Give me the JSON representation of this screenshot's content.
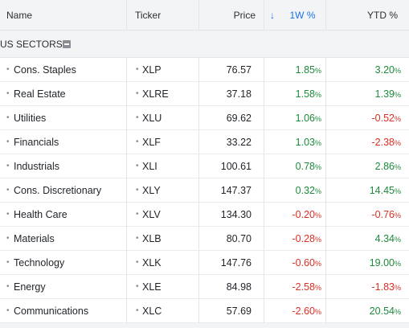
{
  "header": {
    "name": "Name",
    "ticker": "Ticker",
    "price": "Price",
    "sort_icon": "arrow-down-icon",
    "week": "1W %",
    "ytd": "YTD %"
  },
  "group": {
    "title": "US SECTORS",
    "toggle_icon": "collapse-minus-icon"
  },
  "colors": {
    "positive": "#1e8a3c",
    "negative": "#d93025",
    "accent": "#1a73e8"
  },
  "rows": [
    {
      "name": "Cons. Staples",
      "ticker": "XLP",
      "price": "76.57",
      "w1": "1.85",
      "ytd": "3.20"
    },
    {
      "name": "Real Estate",
      "ticker": "XLRE",
      "price": "37.18",
      "w1": "1.58",
      "ytd": "1.39"
    },
    {
      "name": "Utilities",
      "ticker": "XLU",
      "price": "69.62",
      "w1": "1.06",
      "ytd": "-0.52"
    },
    {
      "name": "Financials",
      "ticker": "XLF",
      "price": "33.22",
      "w1": "1.03",
      "ytd": "-2.38"
    },
    {
      "name": "Industrials",
      "ticker": "XLI",
      "price": "100.61",
      "w1": "0.78",
      "ytd": "2.86"
    },
    {
      "name": "Cons. Discretionary",
      "ticker": "XLY",
      "price": "147.37",
      "w1": "0.32",
      "ytd": "14.45"
    },
    {
      "name": "Health Care",
      "ticker": "XLV",
      "price": "134.30",
      "w1": "-0.20",
      "ytd": "-0.76"
    },
    {
      "name": "Materials",
      "ticker": "XLB",
      "price": "80.70",
      "w1": "-0.28",
      "ytd": "4.34"
    },
    {
      "name": "Technology",
      "ticker": "XLK",
      "price": "147.76",
      "w1": "-0.60",
      "ytd": "19.00"
    },
    {
      "name": "Energy",
      "ticker": "XLE",
      "price": "84.98",
      "w1": "-2.58",
      "ytd": "-1.83"
    },
    {
      "name": "Communications",
      "ticker": "XLC",
      "price": "57.69",
      "w1": "-2.60",
      "ytd": "20.54"
    }
  ]
}
